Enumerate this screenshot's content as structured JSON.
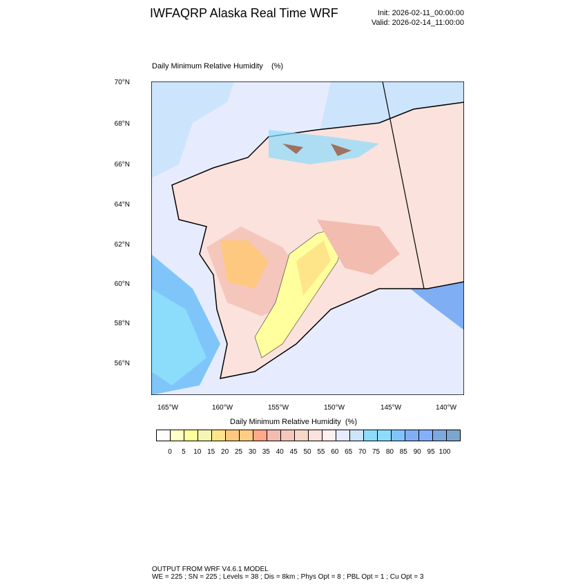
{
  "header": {
    "title": "IWFAQRP Alaska Real Time WRF",
    "init": "Init: 2026-02-11_00:00:00",
    "valid": "Valid: 2026-02-14_11:00:00"
  },
  "map": {
    "title": "Daily Minimum Relative Humidity    (%)",
    "lat_labels": [
      "70°N",
      "68°N",
      "66°N",
      "64°N",
      "62°N",
      "60°N",
      "58°N",
      "56°N"
    ],
    "lon_labels": [
      "165°W",
      "160°W",
      "155°W",
      "150°W",
      "145°W",
      "140°W"
    ]
  },
  "colorbar": {
    "title": "Daily Minimum Relative Humidity  (%)",
    "labels": [
      "0",
      "5",
      "10",
      "15",
      "20",
      "25",
      "30",
      "35",
      "40",
      "45",
      "50",
      "55",
      "60",
      "65",
      "70",
      "75",
      "80",
      "85",
      "90",
      "95",
      "100"
    ],
    "colors": [
      "#fdfdfd",
      "#ffffc8",
      "#ffff9e",
      "#f5f5b4",
      "#ffe58a",
      "#ffc880",
      "#ffcc85",
      "#ffa88a",
      "#f2bcb0",
      "#f5c6bc",
      "#f5d8c8",
      "#fbe2dc",
      "#fdf0f0",
      "#e6ecfd",
      "#cce5fd",
      "#8cdcfb",
      "#8cdcfb",
      "#80c5f9",
      "#80aef5",
      "#84b0fb",
      "#7ea9df",
      "#7ba7cc"
    ]
  },
  "footer": {
    "line1": "OUTPUT FROM WRF V4.6.1 MODEL",
    "line2": "WE = 225 ; SN = 225 ; Levels = 38 ; Dis = 8km ; Phys Opt = 8 ; PBL Opt = 1 ; Cu Opt = 3"
  }
}
